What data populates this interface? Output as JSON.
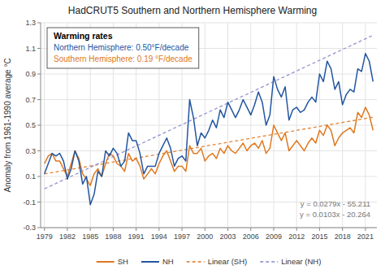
{
  "chart_data": {
    "type": "line",
    "title": "HadCRUT5 Southern and Northern Hemisphere Warming",
    "y_label": "Anomaly from 1961-1990 average °C",
    "x": [
      1979,
      1979.5,
      1980,
      1980.5,
      1981,
      1981.5,
      1982,
      1982.5,
      1983,
      1983.5,
      1984,
      1984.5,
      1985,
      1985.5,
      1986,
      1986.5,
      1987,
      1987.5,
      1988,
      1988.5,
      1989,
      1989.5,
      1990,
      1990.5,
      1991,
      1991.5,
      1992,
      1992.5,
      1993,
      1993.5,
      1994,
      1994.5,
      1995,
      1995.5,
      1996,
      1996.5,
      1997,
      1997.5,
      1998,
      1998.5,
      1999,
      1999.5,
      2000,
      2000.5,
      2001,
      2001.5,
      2002,
      2002.5,
      2003,
      2003.5,
      2004,
      2004.5,
      2005,
      2005.5,
      2006,
      2006.5,
      2007,
      2007.5,
      2008,
      2008.5,
      2009,
      2009.5,
      2010,
      2010.5,
      2011,
      2011.5,
      2012,
      2012.5,
      2013,
      2013.5,
      2014,
      2014.5,
      2015,
      2015.5,
      2016,
      2016.5,
      2017,
      2017.5,
      2018,
      2018.5,
      2019,
      2019.5,
      2020,
      2020.5,
      2021,
      2021.5,
      2022
    ],
    "series": [
      {
        "name": "SH",
        "color": "#E07820",
        "values": [
          0.2,
          0.26,
          0.28,
          0.22,
          0.22,
          0.16,
          0.1,
          0.2,
          0.3,
          0.24,
          0.12,
          0.08,
          0.03,
          0.12,
          0.16,
          0.1,
          0.2,
          0.28,
          0.26,
          0.2,
          0.18,
          0.14,
          0.28,
          0.22,
          0.24,
          0.18,
          0.08,
          0.12,
          0.16,
          0.12,
          0.2,
          0.26,
          0.3,
          0.22,
          0.14,
          0.18,
          0.18,
          0.14,
          0.34,
          0.28,
          0.28,
          0.32,
          0.22,
          0.26,
          0.28,
          0.24,
          0.32,
          0.28,
          0.34,
          0.3,
          0.28,
          0.32,
          0.36,
          0.3,
          0.34,
          0.36,
          0.32,
          0.38,
          0.28,
          0.32,
          0.5,
          0.44,
          0.38,
          0.44,
          0.3,
          0.34,
          0.38,
          0.34,
          0.3,
          0.36,
          0.4,
          0.36,
          0.46,
          0.42,
          0.5,
          0.46,
          0.34,
          0.4,
          0.44,
          0.46,
          0.48,
          0.44,
          0.6,
          0.56,
          0.64,
          0.58,
          0.46
        ]
      },
      {
        "name": "NH",
        "color": "#2255A0",
        "values": [
          0.12,
          0.2,
          0.28,
          0.26,
          0.28,
          0.22,
          0.08,
          0.16,
          0.3,
          0.22,
          0.04,
          0.1,
          -0.12,
          -0.04,
          0.14,
          0.1,
          0.3,
          0.26,
          0.32,
          0.28,
          0.18,
          0.22,
          0.44,
          0.38,
          0.38,
          0.28,
          0.12,
          0.18,
          0.18,
          0.18,
          0.28,
          0.34,
          0.4,
          0.32,
          0.18,
          0.24,
          0.26,
          0.22,
          0.7,
          0.56,
          0.34,
          0.44,
          0.4,
          0.46,
          0.54,
          0.48,
          0.62,
          0.56,
          0.68,
          0.62,
          0.56,
          0.62,
          0.7,
          0.64,
          0.58,
          0.66,
          0.76,
          0.68,
          0.5,
          0.58,
          0.88,
          0.78,
          0.72,
          0.8,
          0.54,
          0.62,
          0.64,
          0.6,
          0.62,
          0.68,
          0.72,
          0.68,
          0.9,
          0.84,
          1.0,
          0.94,
          0.78,
          0.84,
          0.66,
          0.74,
          0.78,
          0.76,
          0.94,
          0.92,
          1.06,
          1.0,
          0.84
        ]
      },
      {
        "name": "Linear (SH)",
        "color": "#E07820",
        "line_style": "dashed",
        "x": [
          1979,
          2022
        ],
        "values": [
          0.1197,
          0.5626
        ]
      },
      {
        "name": "Linear (NH)",
        "color": "#8888CC",
        "line_style": "dashed",
        "x": [
          1979,
          2022
        ],
        "values": [
          0.0031,
          1.2028
        ]
      }
    ],
    "xlim": [
      1978.5,
      2022.5
    ],
    "xticks": [
      1979,
      1982,
      1985,
      1988,
      1991,
      1994,
      1997,
      2000,
      2003,
      2006,
      2009,
      2012,
      2015,
      2018,
      2021
    ],
    "ylim": [
      -0.3,
      1.3
    ],
    "yticks": [
      -0.3,
      -0.1,
      0.1,
      0.3,
      0.5,
      0.7,
      0.9,
      1.1,
      1.3
    ],
    "grid": true,
    "legend": "bottom",
    "annotations": [
      {
        "text": "y = 0.0279x - 55.211",
        "color": "#777777"
      },
      {
        "text": "y = 0.0103x - 20.264",
        "color": "#777777"
      },
      {
        "text": "Warming rates",
        "color": "#000000"
      },
      {
        "text": "Northern Hemisphere: 0.50°F/decade",
        "color": "#2255A0"
      },
      {
        "text": "Southern Hemisphere: 0.19 °F/decade",
        "color": "#E07820"
      }
    ]
  }
}
